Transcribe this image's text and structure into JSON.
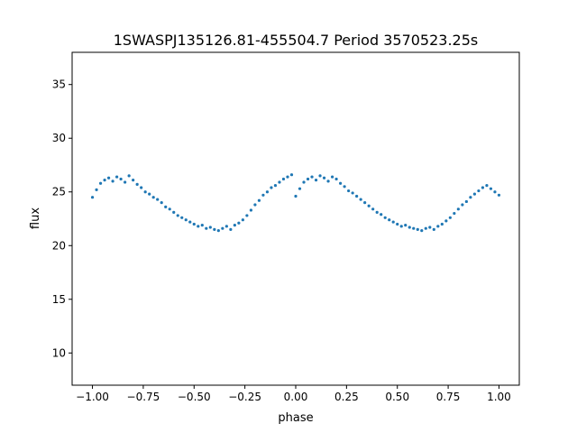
{
  "chart_data": {
    "type": "scatter",
    "title": "1SWASPJ135126.81-455504.7 Period 3570523.25s",
    "xlabel": "phase",
    "ylabel": "flux",
    "xlim": [
      -1.1,
      1.1
    ],
    "ylim": [
      7.0,
      38.0
    ],
    "xticks": [
      -1.0,
      -0.75,
      -0.5,
      -0.25,
      0.0,
      0.25,
      0.5,
      0.75,
      1.0
    ],
    "xtick_labels": [
      "−1.00",
      "−0.75",
      "−0.50",
      "−0.25",
      "0.00",
      "0.25",
      "0.50",
      "0.75",
      "1.00"
    ],
    "yticks": [
      10,
      15,
      20,
      25,
      30,
      35
    ],
    "ytick_labels": [
      "10",
      "15",
      "20",
      "25",
      "30",
      "35"
    ],
    "grid": false,
    "legend": "none",
    "point_color": "#1f77b4",
    "series": [
      {
        "x": [
          -1.0,
          -0.98,
          -0.96,
          -0.94,
          -0.92,
          -0.9,
          -0.88,
          -0.86,
          -0.84,
          -0.82,
          -0.8,
          -0.78,
          -0.76,
          -0.74,
          -0.72,
          -0.7,
          -0.68,
          -0.66,
          -0.64,
          -0.62,
          -0.6,
          -0.58,
          -0.56,
          -0.54,
          -0.52,
          -0.5,
          -0.48,
          -0.46,
          -0.44,
          -0.42,
          -0.4,
          -0.38,
          -0.36,
          -0.34,
          -0.32,
          -0.3,
          -0.28,
          -0.26,
          -0.24,
          -0.22,
          -0.2,
          -0.18,
          -0.16,
          -0.14,
          -0.12,
          -0.1,
          -0.08,
          -0.06,
          -0.04,
          -0.02,
          0.0,
          0.02,
          0.04,
          0.06,
          0.08,
          0.1,
          0.12,
          0.14,
          0.16,
          0.18,
          0.2,
          0.22,
          0.24,
          0.26,
          0.28,
          0.3,
          0.32,
          0.34,
          0.36,
          0.38,
          0.4,
          0.42,
          0.44,
          0.46,
          0.48,
          0.5,
          0.52,
          0.54,
          0.56,
          0.58,
          0.6,
          0.62,
          0.64,
          0.66,
          0.68,
          0.7,
          0.72,
          0.74,
          0.76,
          0.78,
          0.8,
          0.82,
          0.84,
          0.86,
          0.88,
          0.9,
          0.92,
          0.94,
          0.96,
          0.98,
          1.0
        ],
        "y": [
          24.5,
          25.2,
          25.8,
          26.1,
          26.3,
          26.0,
          26.4,
          26.2,
          25.9,
          26.5,
          26.1,
          25.7,
          25.4,
          25.0,
          24.8,
          24.5,
          24.3,
          24.0,
          23.6,
          23.4,
          23.1,
          22.8,
          22.6,
          22.4,
          22.2,
          22.0,
          21.8,
          21.9,
          21.6,
          21.7,
          21.5,
          21.4,
          21.6,
          21.8,
          21.5,
          21.9,
          22.1,
          22.4,
          22.8,
          23.3,
          23.8,
          24.2,
          24.7,
          25.0,
          25.4,
          25.6,
          25.9,
          26.2,
          26.4,
          26.6,
          24.6,
          25.3,
          25.9,
          26.2,
          26.4,
          26.1,
          26.5,
          26.3,
          26.0,
          26.4,
          26.2,
          25.8,
          25.5,
          25.1,
          24.9,
          24.6,
          24.3,
          24.0,
          23.7,
          23.4,
          23.1,
          22.9,
          22.6,
          22.4,
          22.2,
          22.0,
          21.8,
          21.9,
          21.7,
          21.6,
          21.5,
          21.4,
          21.6,
          21.7,
          21.5,
          21.8,
          22.0,
          22.3,
          22.6,
          23.0,
          23.4,
          23.8,
          24.1,
          24.5,
          24.8,
          25.1,
          25.4,
          25.6,
          25.3,
          25.0,
          24.7
        ]
      }
    ]
  }
}
